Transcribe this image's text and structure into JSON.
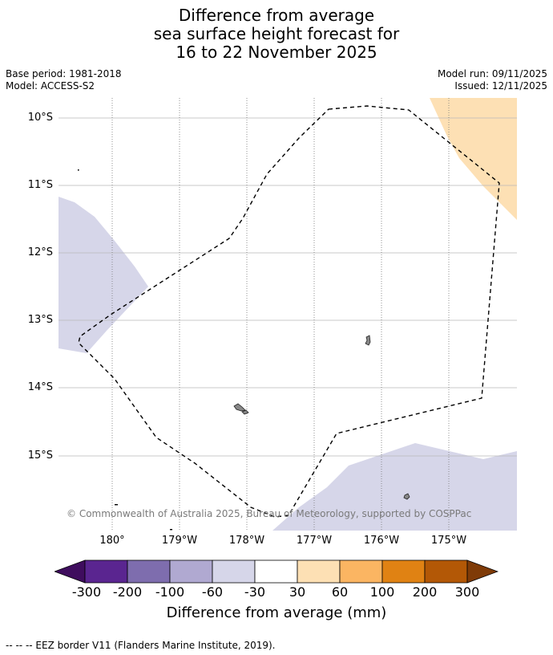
{
  "title": {
    "line1": "Difference from average",
    "line2": "sea surface height forecast for",
    "line3": "16 to 22 November 2025"
  },
  "meta": {
    "base_period": "Base period: 1981-2018",
    "model": "Model: ACCESS-S2",
    "model_run": "Model run: 09/11/2025",
    "issued": "Issued: 12/11/2025"
  },
  "map": {
    "lat_labels": [
      "10°S",
      "11°S",
      "12°S",
      "13°S",
      "14°S",
      "15°S"
    ],
    "lon_labels": [
      "180°",
      "179°W",
      "178°W",
      "177°W",
      "176°W",
      "175°W"
    ],
    "copyright": "© Commonwealth of Australia 2025, Bureau of Meteorology, supported by COSPPac"
  },
  "colorbar": {
    "colors": [
      "#3f0d5e",
      "#5a2590",
      "#7e6dae",
      "#b0a9d1",
      "#d6d6e9",
      "#ffffff",
      "#fde0b4",
      "#fbb562",
      "#e08213",
      "#b35806",
      "#7f3b08"
    ],
    "ticks": [
      "-300",
      "-200",
      "-100",
      "-60",
      "-30",
      "30",
      "60",
      "100",
      "200",
      "300"
    ],
    "label": "Difference from average (mm)"
  },
  "footnote": "-- -- -- EEZ border V11 (Flanders Marine Institute, 2019)."
}
